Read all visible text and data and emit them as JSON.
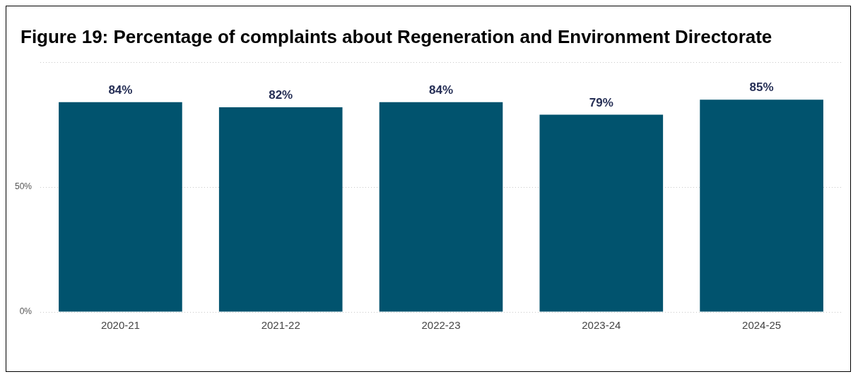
{
  "chart_data": {
    "type": "bar",
    "title": "Figure 19: Percentage of complaints about Regeneration and Environment Directorate",
    "categories": [
      "2020-21",
      "2021-22",
      "2022-23",
      "2023-24",
      "2024-25"
    ],
    "values": [
      84,
      82,
      84,
      79,
      85
    ],
    "color": "#01536e",
    "value_labels": [
      "84%",
      "82%",
      "84%",
      "79%",
      "85%"
    ],
    "ylim": [
      0,
      100
    ],
    "yticks": [
      {
        "value": 0,
        "label": "0%"
      },
      {
        "value": 50,
        "label": "50%"
      },
      {
        "value": 100,
        "label": null
      }
    ],
    "grid": "y",
    "legend": false
  }
}
